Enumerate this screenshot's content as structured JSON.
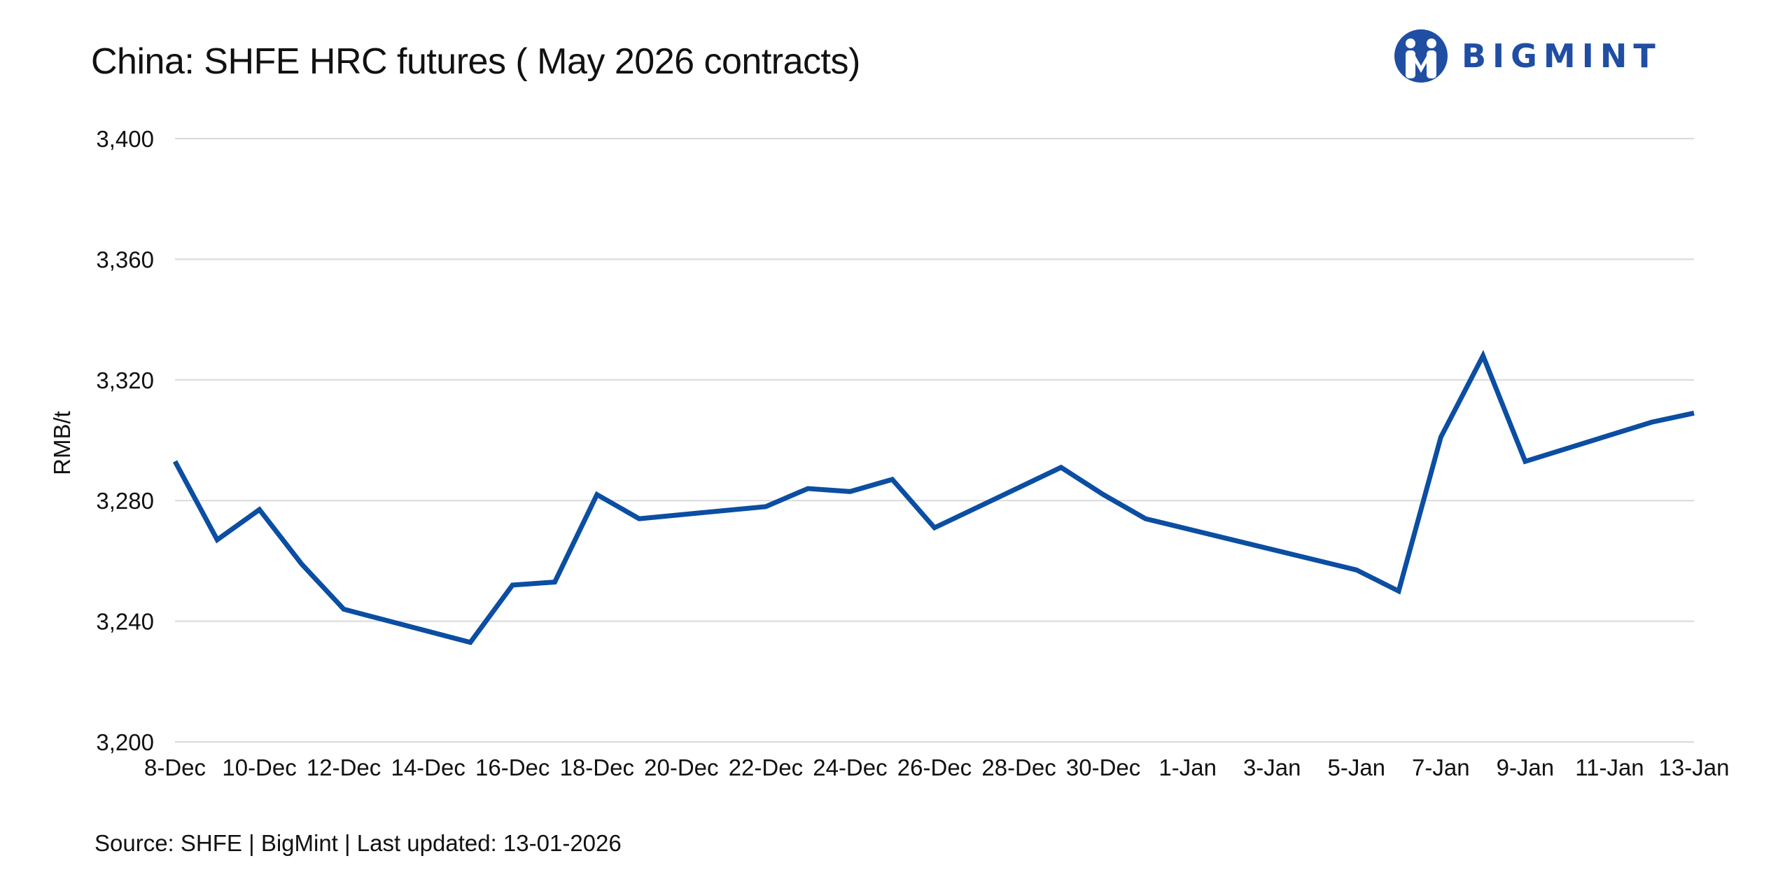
{
  "title": "China: SHFE HRC futures ( May 2026 contracts)",
  "logo_text": "BIGMINT",
  "source": "Source: SHFE | BigMint | Last updated: 13-01-2026",
  "colors": {
    "line": "#0b4ea2",
    "grid": "#d9d9d9",
    "logo": "#1f4ea3"
  },
  "chart_data": {
    "type": "line",
    "ylabel": "RMB/t",
    "xlabel": "",
    "ylim": [
      3200,
      3400
    ],
    "yticks": [
      3200,
      3240,
      3280,
      3320,
      3360,
      3400
    ],
    "ytick_labels": [
      "3,200",
      "3,240",
      "3,280",
      "3,320",
      "3,360",
      "3,400"
    ],
    "x_start": "2025-12-08",
    "xticks": [
      "8-Dec",
      "10-Dec",
      "12-Dec",
      "14-Dec",
      "16-Dec",
      "18-Dec",
      "20-Dec",
      "22-Dec",
      "24-Dec",
      "26-Dec",
      "28-Dec",
      "30-Dec",
      "1-Jan",
      "3-Jan",
      "5-Jan",
      "7-Jan",
      "9-Jan",
      "11-Jan",
      "13-Jan"
    ],
    "grid": "horizontal",
    "legend": "none",
    "series": [
      {
        "x": [
          "8-Dec",
          "9-Dec",
          "10-Dec",
          "11-Dec",
          "12-Dec",
          "15-Dec",
          "16-Dec",
          "17-Dec",
          "18-Dec",
          "19-Dec",
          "22-Dec",
          "23-Dec",
          "24-Dec",
          "25-Dec",
          "26-Dec",
          "29-Dec",
          "30-Dec",
          "31-Dec",
          "5-Jan",
          "6-Jan",
          "7-Jan",
          "8-Jan",
          "9-Jan",
          "12-Jan",
          "13-Jan"
        ],
        "day_index": [
          0,
          1,
          2,
          3,
          4,
          7,
          8,
          9,
          10,
          11,
          14,
          15,
          16,
          17,
          18,
          21,
          22,
          23,
          28,
          29,
          30,
          31,
          32,
          35,
          36
        ],
        "values": [
          3293,
          3267,
          3277,
          3259,
          3244,
          3233,
          3252,
          3253,
          3282,
          3274,
          3278,
          3284,
          3283,
          3287,
          3271,
          3291,
          3282,
          3274,
          3257,
          3250,
          3301,
          3328,
          3293,
          3306,
          3309
        ]
      }
    ]
  }
}
